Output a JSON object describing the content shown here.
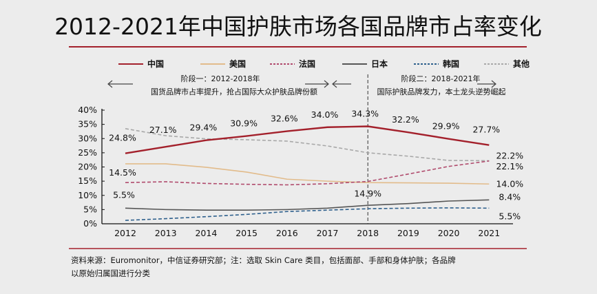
{
  "chart_data": {
    "type": "line",
    "title": "2012-2021年中国护肤市场各国品牌市占率变化",
    "x": [
      "2012",
      "2013",
      "2014",
      "2015",
      "2016",
      "2017",
      "2018",
      "2019",
      "2020",
      "2021"
    ],
    "ylim": [
      0,
      40
    ],
    "yticks": [
      "0%",
      "5%",
      "10%",
      "15%",
      "20%",
      "25%",
      "30%",
      "35%",
      "40%"
    ],
    "grid": false,
    "legend_position": "top",
    "series": [
      {
        "name": "中国",
        "color": "#a3202b",
        "dash": false,
        "values": [
          24.8,
          27.1,
          29.4,
          30.9,
          32.6,
          34.0,
          34.3,
          32.2,
          29.9,
          27.7
        ]
      },
      {
        "name": "美国",
        "color": "#e2bb8a",
        "dash": false,
        "values": [
          21.1,
          21.1,
          19.9,
          18.2,
          15.7,
          15.0,
          14.5,
          14.4,
          14.3,
          14.0
        ]
      },
      {
        "name": "法国",
        "color": "#b04a6c",
        "dash": true,
        "values": [
          14.5,
          14.8,
          14.2,
          13.9,
          13.7,
          14.1,
          14.9,
          17.5,
          20.2,
          22.1
        ]
      },
      {
        "name": "日本",
        "color": "#555555",
        "dash": false,
        "values": [
          5.5,
          5.0,
          4.8,
          4.8,
          5.0,
          5.5,
          6.5,
          7.1,
          8.0,
          8.4
        ]
      },
      {
        "name": "韩国",
        "color": "#2d5f8c",
        "dash": true,
        "values": [
          1.2,
          1.8,
          2.5,
          3.3,
          4.3,
          4.8,
          5.3,
          5.5,
          5.6,
          5.5
        ]
      },
      {
        "name": "其他",
        "color": "#a8a8a8",
        "dash": true,
        "values": [
          33.5,
          31.0,
          29.9,
          29.6,
          29.1,
          27.4,
          25.0,
          23.8,
          22.3,
          22.2
        ]
      }
    ],
    "data_labels": [
      {
        "series": 0,
        "index": 0,
        "text": "24.8%"
      },
      {
        "series": 0,
        "index": 1,
        "text": "27.1%"
      },
      {
        "series": 0,
        "index": 2,
        "text": "29.4%"
      },
      {
        "series": 0,
        "index": 3,
        "text": "30.9%"
      },
      {
        "series": 0,
        "index": 4,
        "text": "32.6%"
      },
      {
        "series": 0,
        "index": 5,
        "text": "34.0%"
      },
      {
        "series": 0,
        "index": 6,
        "text": "34.3%"
      },
      {
        "series": 0,
        "index": 7,
        "text": "32.2%"
      },
      {
        "series": 0,
        "index": 8,
        "text": "29.9%"
      },
      {
        "series": 0,
        "index": 9,
        "text": "27.7%"
      },
      {
        "series": 5,
        "index": 9,
        "text": "22.2%"
      },
      {
        "series": 2,
        "index": 9,
        "text": "22.1%"
      },
      {
        "series": 1,
        "index": 9,
        "text": "14.0%"
      },
      {
        "series": 2,
        "index": 0,
        "text": "14.5%"
      },
      {
        "series": 2,
        "index": 6,
        "text": "14.9%"
      },
      {
        "series": 3,
        "index": 0,
        "text": "5.5%"
      },
      {
        "series": 3,
        "index": 9,
        "text": "8.4%"
      },
      {
        "series": 4,
        "index": 9,
        "text": "5.5%"
      }
    ],
    "divider_year": "2018",
    "annotations": {
      "stage1_title": "阶段一：2012-2018年",
      "stage1_desc": "国货品牌市占率提升，抢占国际大众护肤品牌份额",
      "stage2_title": "阶段二：2018-2021年",
      "stage2_desc": "国际护肤品牌发力，本土龙头逆势崛起"
    }
  },
  "footer": {
    "line1": "资料来源：Euromonitor，中信证券研究部；注：选取 Skin Care 类目，包括面部、手部和身体护肤；各品牌",
    "line2": "以原始归属国进行分类"
  },
  "colors": {
    "accent": "#a3202b",
    "background": "#ececec"
  }
}
